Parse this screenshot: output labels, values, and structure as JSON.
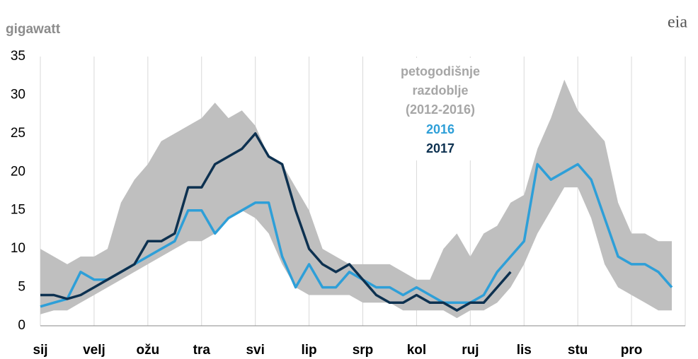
{
  "chart_data": {
    "type": "line",
    "y_label": "gigawatt",
    "logo": "eia",
    "categories": [
      "sij",
      null,
      null,
      null,
      "velj",
      null,
      null,
      null,
      "ožu",
      null,
      null,
      null,
      "tra",
      null,
      null,
      null,
      "svi",
      null,
      null,
      null,
      "lip",
      null,
      null,
      null,
      "srp",
      null,
      null,
      null,
      "kol",
      null,
      null,
      null,
      "ruj",
      null,
      null,
      null,
      "lis",
      null,
      null,
      null,
      "stu",
      null,
      null,
      null,
      "pro",
      null,
      null,
      null
    ],
    "band": {
      "name": [
        "petogodišnje",
        "razdoblje",
        "(2012-2016)"
      ],
      "color": "#bfbfbf",
      "low": [
        1.5,
        2,
        2,
        3,
        4,
        5,
        6,
        7,
        8,
        9,
        10,
        11,
        11,
        12,
        14,
        15,
        14,
        12,
        8,
        5,
        4,
        4,
        4,
        4,
        3,
        3,
        3,
        2,
        2,
        2,
        2,
        1,
        2,
        2,
        3,
        5,
        8,
        12,
        15,
        18,
        18,
        14,
        8,
        5,
        4,
        3,
        2,
        2
      ],
      "high": [
        10,
        9,
        8,
        9,
        9,
        10,
        16,
        19,
        21,
        24,
        25,
        26,
        27,
        29,
        27,
        28,
        26,
        22,
        21,
        18,
        15,
        10,
        9,
        8,
        8,
        8,
        8,
        7,
        6,
        6,
        10,
        12,
        9,
        12,
        13,
        16,
        17,
        23,
        27,
        32,
        28,
        26,
        24,
        16,
        12,
        12,
        11,
        11
      ]
    },
    "series": [
      {
        "name": "2016",
        "color": "#2e9fd8",
        "values": [
          2.5,
          3,
          3.5,
          7,
          6,
          6,
          7,
          8,
          9,
          10,
          11,
          15,
          15,
          12,
          14,
          15,
          16,
          16,
          9,
          5,
          8,
          5,
          5,
          7,
          6,
          5,
          5,
          4,
          5,
          4,
          3,
          3,
          3,
          4,
          7,
          9,
          11,
          21,
          19,
          20,
          21,
          19,
          14,
          9,
          8,
          8,
          7,
          5
        ]
      },
      {
        "name": "2017",
        "color": "#0d3150",
        "values": [
          4,
          4,
          3.5,
          4,
          5,
          6,
          7,
          8,
          11,
          11,
          12,
          18,
          18,
          21,
          22,
          23,
          25,
          22,
          21,
          15,
          10,
          8,
          7,
          8,
          6,
          4,
          3,
          3,
          4,
          3,
          3,
          2,
          3,
          3,
          5,
          7,
          null,
          null,
          null,
          null,
          null,
          null,
          null,
          null,
          null,
          null,
          null,
          null
        ]
      }
    ],
    "ylim": [
      0,
      35
    ],
    "yticks": [
      0,
      5,
      10,
      15,
      20,
      25,
      30,
      35
    ],
    "grid": "x"
  }
}
